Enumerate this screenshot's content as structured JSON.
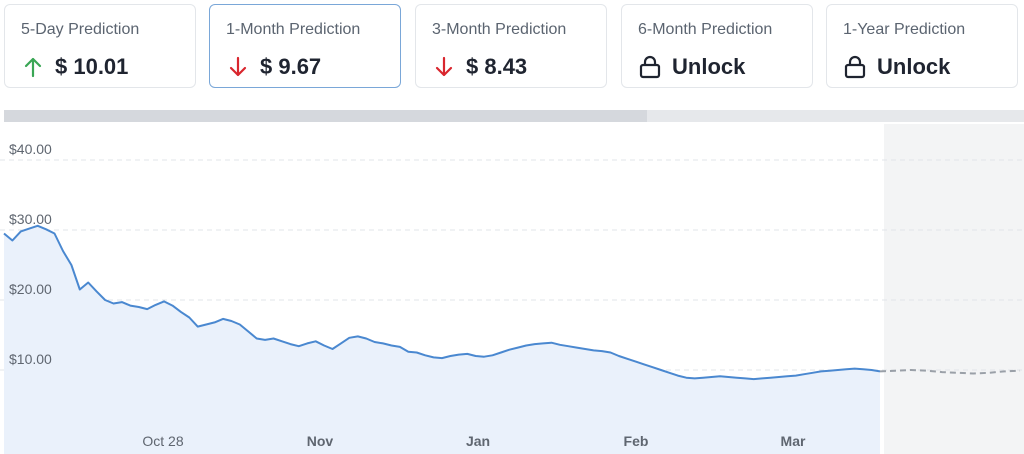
{
  "cards": [
    {
      "label": "5-Day Prediction",
      "value": "$ 10.01",
      "icon": "arrow-up-icon",
      "color": "#3aa655",
      "active": false
    },
    {
      "label": "1-Month Prediction",
      "value": "$ 9.67",
      "icon": "arrow-down-icon",
      "color": "#d9262e",
      "active": true
    },
    {
      "label": "3-Month Prediction",
      "value": "$ 8.43",
      "icon": "arrow-down-icon",
      "color": "#d9262e",
      "active": false
    },
    {
      "label": "6-Month Prediction",
      "value": "Unlock",
      "icon": "lock-icon",
      "color": "#1f2430",
      "active": false
    },
    {
      "label": "1-Year Prediction",
      "value": "Unlock",
      "icon": "lock-icon",
      "color": "#1f2430",
      "active": false
    }
  ],
  "timeline_progress": 0.63,
  "chart_data": {
    "type": "area",
    "title": "",
    "xlabel": "",
    "ylabel": "",
    "ylim": [
      0,
      44
    ],
    "y_ticks": [
      {
        "value": 40,
        "label": "$40.00"
      },
      {
        "value": 30,
        "label": "$30.00"
      },
      {
        "value": 20,
        "label": "$20.00"
      },
      {
        "value": 10,
        "label": "$10.00"
      }
    ],
    "x_ticks": [
      "Oct 28",
      "Nov",
      "Jan",
      "Feb",
      "Mar"
    ],
    "grid": true,
    "series": [
      {
        "values": [
          29.5,
          28.5,
          29.8,
          30.2,
          30.6,
          30.1,
          29.5,
          27.0,
          25.0,
          21.5,
          22.5,
          21.2,
          20.0,
          19.5,
          19.7,
          19.2,
          19.0,
          18.7,
          19.3,
          19.8,
          19.2,
          18.3,
          17.5,
          16.2,
          16.5,
          16.8,
          17.3,
          17.0,
          16.5,
          15.5,
          14.5,
          14.3,
          14.5,
          14.1,
          13.7,
          13.4,
          13.8,
          14.1,
          13.5,
          13.0,
          13.8,
          14.6,
          14.8,
          14.5,
          14.0,
          13.8,
          13.5,
          13.3,
          12.6,
          12.5,
          12.1,
          11.8,
          11.7,
          12.0,
          12.2,
          12.3,
          12.0,
          11.9,
          12.1,
          12.5,
          12.9,
          13.2,
          13.5,
          13.7,
          13.8,
          13.9,
          13.6,
          13.4,
          13.2,
          13.0,
          12.8,
          12.7,
          12.5,
          12.0,
          11.6,
          11.2,
          10.8,
          10.4,
          10.0,
          9.6,
          9.2,
          8.9,
          8.8,
          8.9,
          9.0,
          9.1,
          9.0,
          8.9,
          8.8,
          8.7,
          8.8,
          8.9,
          9.0,
          9.1,
          9.2,
          9.4,
          9.6,
          9.8,
          9.9,
          10.0,
          10.1,
          10.2,
          10.1,
          10.0,
          9.8
        ]
      },
      {
        "name": "",
        "style": "dashed",
        "values": [
          9.8,
          9.9,
          10.0,
          9.9,
          9.7,
          9.6,
          9.5,
          9.6,
          9.8,
          9.9
        ]
      }
    ]
  }
}
